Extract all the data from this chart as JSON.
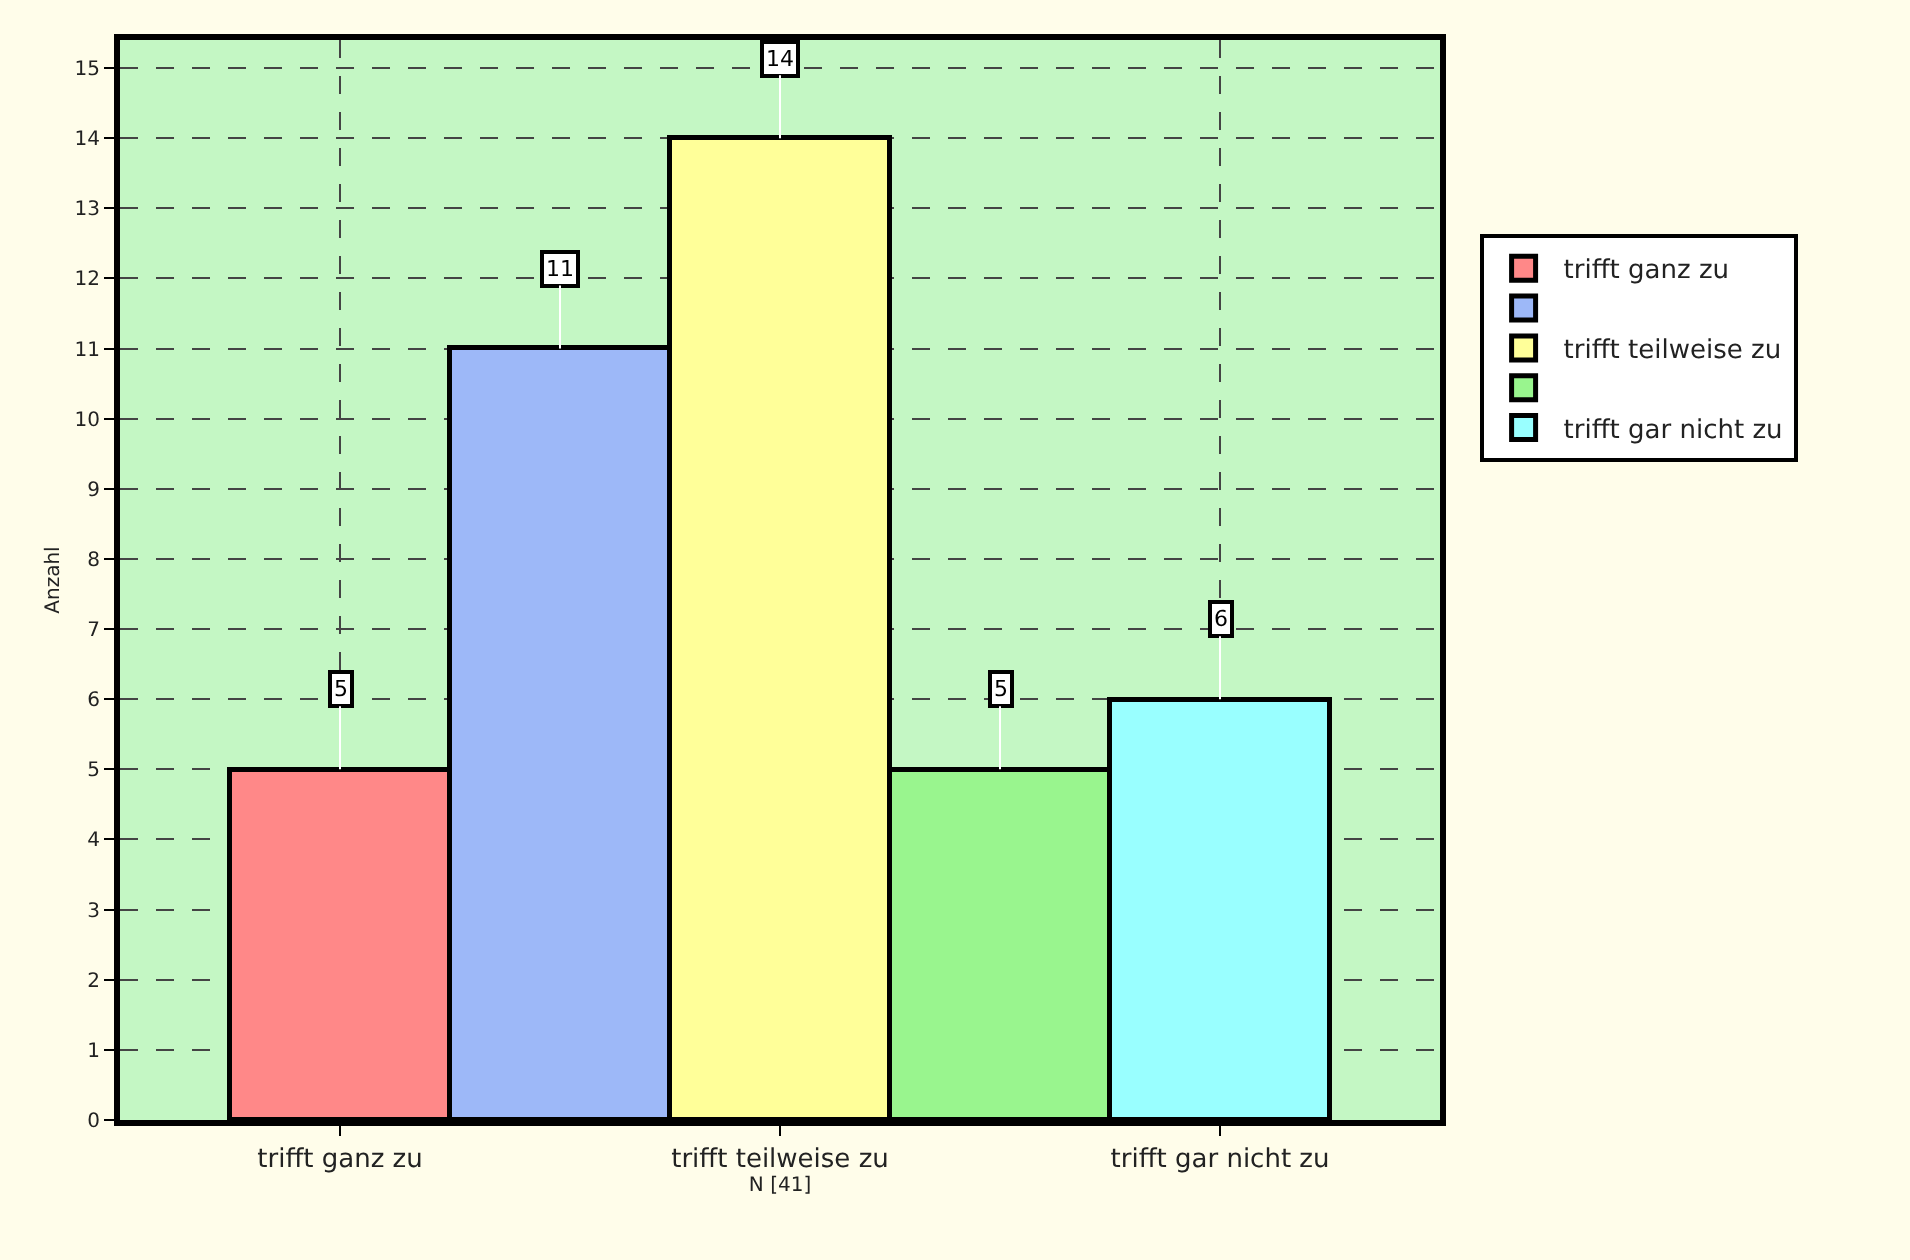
{
  "chart_data": {
    "type": "bar",
    "xlabel": "N [41]",
    "ylabel": "Anzahl",
    "categories": [
      "trifft ganz zu",
      null,
      "trifft teilweise zu",
      null,
      "trifft gar nicht zu"
    ],
    "series": [
      {
        "name": "trifft ganz zu",
        "color": "#ff8888",
        "values": [
          5,
          null,
          null,
          null,
          null
        ]
      },
      {
        "color": "#9db8f8",
        "values": [
          null,
          11,
          null,
          null,
          null
        ]
      },
      {
        "name": "trifft teilweise zu",
        "color": "#ffff99",
        "values": [
          null,
          null,
          14,
          null,
          null
        ]
      },
      {
        "color": "#99f58e",
        "values": [
          null,
          null,
          null,
          5,
          null
        ]
      },
      {
        "name": "trifft gar nicht zu",
        "color": "#99ffff",
        "values": [
          null,
          null,
          null,
          null,
          6
        ]
      }
    ],
    "ylim": [
      0,
      15.4
    ],
    "yticks": [
      0,
      1,
      2,
      3,
      4,
      5,
      6,
      7,
      8,
      9,
      10,
      11,
      12,
      13,
      14,
      15
    ],
    "grid": true,
    "legend": "right",
    "data_labels": true
  }
}
